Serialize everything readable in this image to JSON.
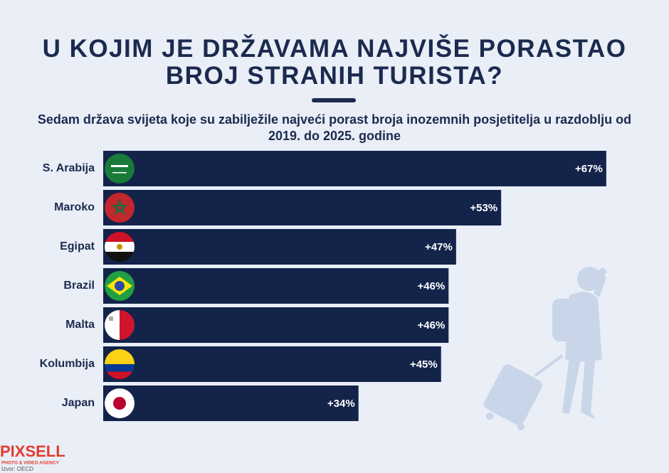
{
  "chart_data": {
    "type": "bar",
    "orientation": "horizontal",
    "title": "U KOJIM JE DRŽAVAMA NAJVIŠE PORASTAO BROJ STRANIH TURISTA?",
    "subtitle": "Sedam država svijeta koje su zabilježile najveći porast broja inozemnih posjetitelja u razdoblju od 2019. do 2025. godine",
    "categories": [
      "S. Arabija",
      "Maroko",
      "Egipat",
      "Brazil",
      "Malta",
      "Kolumbija",
      "Japan"
    ],
    "values": [
      67,
      53,
      47,
      46,
      46,
      45,
      34
    ],
    "value_labels": [
      "+67%",
      "+53%",
      "+47%",
      "+46%",
      "+46%",
      "+45%",
      "+34%"
    ],
    "color": "#13234a"
  },
  "logo": {
    "name": "PIXSELL",
    "tagline": "PHOTO & VIDEO AGENCY"
  },
  "source": "Izvor: OECD"
}
